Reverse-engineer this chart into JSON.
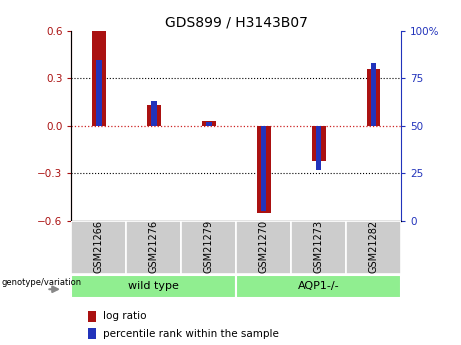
{
  "title": "GDS899 / H3143B07",
  "samples": [
    "GSM21266",
    "GSM21276",
    "GSM21279",
    "GSM21270",
    "GSM21273",
    "GSM21282"
  ],
  "log_ratio": [
    0.6,
    0.13,
    0.03,
    -0.55,
    -0.22,
    0.36
  ],
  "percentile_rank": [
    85,
    63,
    52,
    5,
    27,
    83
  ],
  "groups": [
    {
      "label": "wild type",
      "color": "#90EE90"
    },
    {
      "label": "AQP1-/-",
      "color": "#90EE90"
    }
  ],
  "ylim_left": [
    -0.6,
    0.6
  ],
  "ylim_right": [
    0,
    100
  ],
  "yticks_left": [
    -0.6,
    -0.3,
    0.0,
    0.3,
    0.6
  ],
  "yticks_right": [
    0,
    25,
    50,
    75,
    100
  ],
  "red_color": "#AA1111",
  "blue_color": "#2233BB",
  "zero_line_color": "#CC2222",
  "title_fontsize": 10,
  "tick_fontsize": 7.5,
  "sample_fontsize": 7,
  "group_fontsize": 8,
  "legend_fontsize": 7.5,
  "genotype_label": "genotype/variation",
  "legend_log_ratio": "log ratio",
  "legend_percentile": "percentile rank within the sample",
  "red_bar_width": 0.25,
  "blue_bar_width": 0.1
}
